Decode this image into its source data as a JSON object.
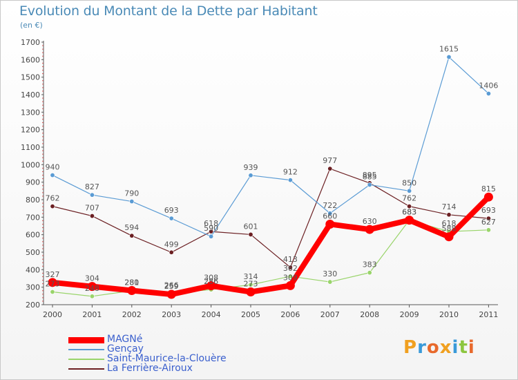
{
  "title": "Evolution du Montant de la Dette par Habitant",
  "subtitle": "(en €)",
  "logo": {
    "text": "Proxiti",
    "colors": [
      "#f0a020",
      "#3a9ad9",
      "#e8692c",
      "#f0a020",
      "#3a9ad9",
      "#8cc63f",
      "#e8692c"
    ]
  },
  "chart_data": {
    "type": "line",
    "x": [
      "2000",
      "2001",
      "2002",
      "2003",
      "2004",
      "2005",
      "2006",
      "2007",
      "2008",
      "2009",
      "2010",
      "2011"
    ],
    "ylim": [
      200,
      1700
    ],
    "yticks": [
      200,
      300,
      400,
      500,
      600,
      700,
      800,
      900,
      1000,
      1100,
      1200,
      1300,
      1400,
      1500,
      1600,
      1700
    ],
    "grid": false,
    "legend_position": "bottom-left",
    "series": [
      {
        "name": "MAGNé",
        "color": "#ff0000",
        "values": [
          327,
          304,
          281,
          259,
          308,
          273,
          309,
          660,
          630,
          683,
          588,
          815
        ],
        "width": 8
      },
      {
        "name": "Gençay",
        "color": "#5a9bd4",
        "values": [
          940,
          827,
          790,
          693,
          590,
          939,
          912,
          722,
          885,
          850,
          1615,
          1406
        ],
        "width": 1.2
      },
      {
        "name": "Saint-Maurice-la-Clouère",
        "color": "#99d46a",
        "values": [
          273,
          248,
          280,
          266,
          286,
          314,
          362,
          330,
          383,
          683,
          618,
          627
        ],
        "width": 1.2
      },
      {
        "name": "La Ferrière-Airoux",
        "color": "#6b1f22",
        "values": [
          762,
          707,
          594,
          499,
          618,
          601,
          413,
          977,
          895,
          762,
          714,
          693
        ],
        "width": 1.2
      }
    ]
  }
}
